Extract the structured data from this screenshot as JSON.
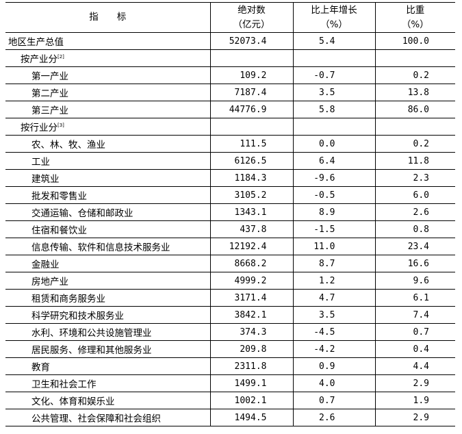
{
  "header": {
    "indicator": "指　　标",
    "abs": "绝对数",
    "abs_unit": "（亿元）",
    "growth": "比上年增长",
    "growth_unit": "（%）",
    "share": "比重",
    "share_unit": "（%）"
  },
  "rows": [
    {
      "label": "地区生产总值",
      "level": 0,
      "abs": "52073.4",
      "growth": "5.4",
      "share": "100.0"
    },
    {
      "label": "按产业分",
      "level": 1,
      "note": "[2]",
      "abs": "",
      "growth": "",
      "share": ""
    },
    {
      "label": "第一产业",
      "level": 2,
      "abs": "109.2",
      "growth": "-0.7",
      "share": "0.2"
    },
    {
      "label": "第二产业",
      "level": 2,
      "abs": "7187.4",
      "growth": "3.5",
      "share": "13.8"
    },
    {
      "label": "第三产业",
      "level": 2,
      "abs": "44776.9",
      "growth": "5.8",
      "share": "86.0"
    },
    {
      "label": "按行业分",
      "level": 1,
      "note": "[3]",
      "abs": "",
      "growth": "",
      "share": ""
    },
    {
      "label": "农、林、牧、渔业",
      "level": 2,
      "abs": "111.5",
      "growth": "0.0",
      "share": "0.2"
    },
    {
      "label": "工业",
      "level": 2,
      "abs": "6126.5",
      "growth": "6.4",
      "share": "11.8"
    },
    {
      "label": "建筑业",
      "level": 2,
      "abs": "1184.3",
      "growth": "-9.6",
      "share": "2.3"
    },
    {
      "label": "批发和零售业",
      "level": 2,
      "abs": "3105.2",
      "growth": "-0.5",
      "share": "6.0"
    },
    {
      "label": "交通运输、仓储和邮政业",
      "level": 2,
      "abs": "1343.1",
      "growth": "8.9",
      "share": "2.6"
    },
    {
      "label": "住宿和餐饮业",
      "level": 2,
      "abs": "437.8",
      "growth": "-1.5",
      "share": "0.8"
    },
    {
      "label": "信息传输、软件和信息技术服务业",
      "level": 2,
      "abs": "12192.4",
      "growth": "11.0",
      "share": "23.4"
    },
    {
      "label": "金融业",
      "level": 2,
      "abs": "8668.2",
      "growth": "8.7",
      "share": "16.6"
    },
    {
      "label": "房地产业",
      "level": 2,
      "abs": "4999.2",
      "growth": "1.2",
      "share": "9.6"
    },
    {
      "label": "租赁和商务服务业",
      "level": 2,
      "abs": "3171.4",
      "growth": "4.7",
      "share": "6.1"
    },
    {
      "label": "科学研究和技术服务业",
      "level": 2,
      "abs": "3842.1",
      "growth": "3.5",
      "share": "7.4"
    },
    {
      "label": "水利、环境和公共设施管理业",
      "level": 2,
      "abs": "374.3",
      "growth": "-4.5",
      "share": "0.7"
    },
    {
      "label": "居民服务、修理和其他服务业",
      "level": 2,
      "abs": "209.8",
      "growth": "-4.2",
      "share": "0.4"
    },
    {
      "label": "教育",
      "level": 2,
      "abs": "2311.8",
      "growth": "0.9",
      "share": "4.4"
    },
    {
      "label": "卫生和社会工作",
      "level": 2,
      "abs": "1499.1",
      "growth": "4.0",
      "share": "2.9"
    },
    {
      "label": "文化、体育和娱乐业",
      "level": 2,
      "abs": "1002.1",
      "growth": "0.7",
      "share": "1.9"
    },
    {
      "label": "公共管理、社会保障和社会组织",
      "level": 2,
      "abs": "1494.5",
      "growth": "2.6",
      "share": "2.9"
    }
  ]
}
